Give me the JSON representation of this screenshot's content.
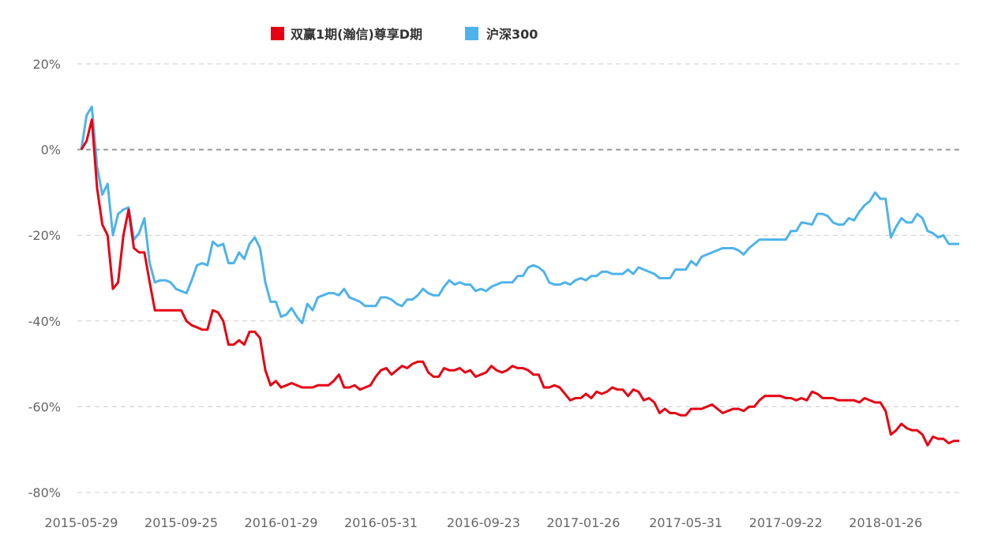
{
  "chart_data": {
    "type": "line",
    "title": "",
    "xlabel": "",
    "ylabel": "",
    "ylim": [
      -80,
      20
    ],
    "yticks": [
      20,
      0,
      -20,
      -40,
      -60,
      -80
    ],
    "ytick_labels": [
      "20%",
      "0%",
      "-20%",
      "-40%",
      "-60%",
      "-80%"
    ],
    "grid": true,
    "legend_position": "top-center",
    "x_unit": "week index",
    "xticks": [
      {
        "index": 0,
        "label": "2015-05-29"
      },
      {
        "index": 19,
        "label": "2015-09-25"
      },
      {
        "index": 38,
        "label": "2016-01-29"
      },
      {
        "index": 57,
        "label": "2016-05-31"
      },
      {
        "index": 76.5,
        "label": "2016-09-23"
      },
      {
        "index": 95.5,
        "label": "2017-01-26"
      },
      {
        "index": 115,
        "label": "2017-05-31"
      },
      {
        "index": 134,
        "label": "2017-09-22"
      },
      {
        "index": 153,
        "label": "2018-01-26"
      }
    ],
    "series": [
      {
        "name": "双赢1期(瀚信)尊享D期",
        "color": "#e60012",
        "values": [
          0,
          2,
          7,
          -9,
          -17.5,
          -20,
          -32.5,
          -31,
          -20,
          -14,
          -23,
          -24,
          -24,
          -31,
          -37.5,
          -37.5,
          -37.5,
          -37.5,
          -37.5,
          -37.5,
          -40,
          -41,
          -41.5,
          -42,
          -42,
          -37.5,
          -38,
          -40,
          -45.5,
          -45.5,
          -44.5,
          -45.5,
          -42.5,
          -42.5,
          -44,
          -51.5,
          -55,
          -54,
          -55.5,
          -55,
          -54.5,
          -55,
          -55.5,
          -55.5,
          -55.5,
          -55,
          -55,
          -55,
          -54,
          -52.5,
          -55.5,
          -55.5,
          -55,
          -56,
          -55.5,
          -55,
          -53,
          -51.5,
          -51,
          -52.5,
          -51.5,
          -50.5,
          -51,
          -50,
          -49.5,
          -49.5,
          -52,
          -53,
          -53,
          -51,
          -51.5,
          -51.5,
          -51,
          -52,
          -51.5,
          -53,
          -52.5,
          -52,
          -50.5,
          -51.5,
          -52,
          -51.5,
          -50.5,
          -51,
          -51,
          -51.5,
          -52.5,
          -52.5,
          -55.5,
          -55.5,
          -55,
          -55.5,
          -57,
          -58.5,
          -58,
          -58,
          -57,
          -58,
          -56.5,
          -57,
          -56.5,
          -55.5,
          -56,
          -56,
          -57.5,
          -56,
          -56.5,
          -58.5,
          -58,
          -59,
          -61.5,
          -60.5,
          -61.5,
          -61.5,
          -62,
          -62,
          -60.5,
          -60.5,
          -60.5,
          -60,
          -59.5,
          -60.5,
          -61.5,
          -61,
          -60.5,
          -60.5,
          -61,
          -60,
          -60,
          -58.5,
          -57.5,
          -57.5,
          -57.5,
          -57.5,
          -58,
          -58,
          -58.5,
          -58,
          -58.5,
          -56.5,
          -57,
          -58,
          -58,
          -58,
          -58.5,
          -58.5,
          -58.5,
          -58.5,
          -59,
          -58,
          -58.5,
          -59,
          -59,
          -61,
          -66.5,
          -65.5,
          -64,
          -65,
          -65.5,
          -65.5,
          -66.5,
          -69,
          -67,
          -67.5,
          -67.5,
          -68.5,
          -68,
          -68
        ]
      },
      {
        "name": "沪深300",
        "color": "#4eb3ea",
        "values": [
          0,
          8,
          10,
          -4,
          -10.5,
          -8,
          -20,
          -15,
          -14,
          -13.5,
          -21,
          -19.5,
          -16,
          -26.5,
          -31,
          -30.5,
          -30.5,
          -31,
          -32.5,
          -33,
          -33.5,
          -30.5,
          -27,
          -26.5,
          -27,
          -21.5,
          -22.5,
          -22,
          -26.5,
          -26.5,
          -24,
          -25.5,
          -22,
          -20.5,
          -23,
          -31,
          -35.5,
          -35.5,
          -39,
          -38.5,
          -37,
          -39,
          -40.5,
          -36,
          -37.5,
          -34.5,
          -34,
          -33.5,
          -33.5,
          -34,
          -32.5,
          -34.5,
          -35,
          -35.5,
          -36.5,
          -36.5,
          -36.5,
          -34.5,
          -34.5,
          -35,
          -36,
          -36.5,
          -35,
          -35,
          -34,
          -32.5,
          -33.5,
          -34,
          -34,
          -32,
          -30.5,
          -31.5,
          -31,
          -31.5,
          -31.5,
          -33,
          -32.5,
          -33,
          -32,
          -31.5,
          -31,
          -31,
          -31,
          -29.5,
          -29.5,
          -27.5,
          -27,
          -27.5,
          -28.5,
          -31,
          -31.5,
          -31.5,
          -31,
          -31.5,
          -30.5,
          -30,
          -30.5,
          -29.5,
          -29.5,
          -28.5,
          -28.5,
          -29,
          -29,
          -29,
          -28,
          -29,
          -27.5,
          -28,
          -28.5,
          -29,
          -30,
          -30,
          -30,
          -28,
          -28,
          -28,
          -26,
          -27,
          -25,
          -24.5,
          -24,
          -23.5,
          -23,
          -23,
          -23,
          -23.5,
          -24.5,
          -23,
          -22,
          -21,
          -21,
          -21,
          -21,
          -21,
          -21,
          -19,
          -19,
          -17,
          -17.2,
          -17.5,
          -15,
          -15,
          -15.5,
          -17,
          -17.5,
          -17.5,
          -16,
          -16.5,
          -14.5,
          -13,
          -12,
          -10,
          -11.5,
          -11.5,
          -20.5,
          -18,
          -16,
          -17,
          -17,
          -15,
          -16,
          -19,
          -19.5,
          -20.5,
          -20,
          -22,
          -22,
          -22
        ]
      }
    ]
  }
}
